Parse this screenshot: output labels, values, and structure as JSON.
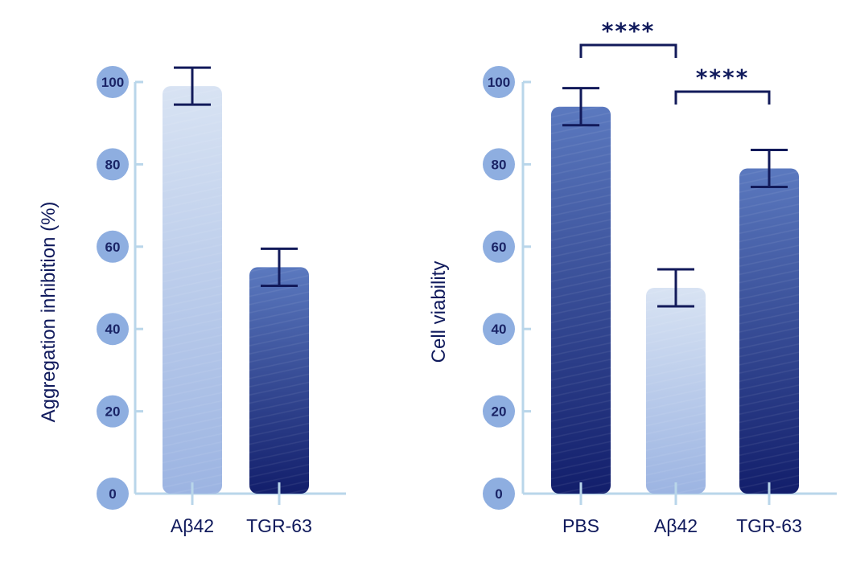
{
  "chart_data": [
    {
      "type": "bar",
      "categories": [
        "Aβ42",
        "TGR-63"
      ],
      "values": [
        99,
        55
      ],
      "errors": [
        4.5,
        4.5
      ],
      "bar_styles": [
        "light",
        "dark"
      ],
      "title": "",
      "xlabel": "",
      "ylabel": "Aggregation inhibition (%)",
      "ylim": [
        0,
        100
      ],
      "yticks": [
        0,
        20,
        40,
        60,
        80,
        100
      ],
      "ytick_labels": [
        "0",
        "20",
        "40",
        "60",
        "80",
        "100"
      ],
      "significance": []
    },
    {
      "type": "bar",
      "categories": [
        "PBS",
        "Aβ42",
        "TGR-63"
      ],
      "values": [
        94,
        50,
        79
      ],
      "errors": [
        4.5,
        4.5,
        4.5
      ],
      "bar_styles": [
        "dark",
        "light",
        "dark"
      ],
      "title": "",
      "xlabel": "",
      "ylabel": "Cell viability",
      "ylim": [
        0,
        100
      ],
      "yticks": [
        0,
        20,
        40,
        60,
        80,
        100
      ],
      "ytick_labels": [
        "0",
        "20",
        "40",
        "60",
        "80",
        "100"
      ],
      "significance": [
        {
          "from": 0,
          "to": 1,
          "label": "****"
        },
        {
          "from": 1,
          "to": 2,
          "label": "****"
        }
      ]
    }
  ],
  "colors": {
    "axis": "#b9d6ea",
    "tick_bubble": "#8eaee0",
    "text": "#101a5c",
    "bar_light_top": "#d8e3f3",
    "bar_light_bottom": "#9cb4e2",
    "bar_dark_top": "#5b79bf",
    "bar_dark_bottom": "#121e6b",
    "error_bar": "#121a5a"
  }
}
